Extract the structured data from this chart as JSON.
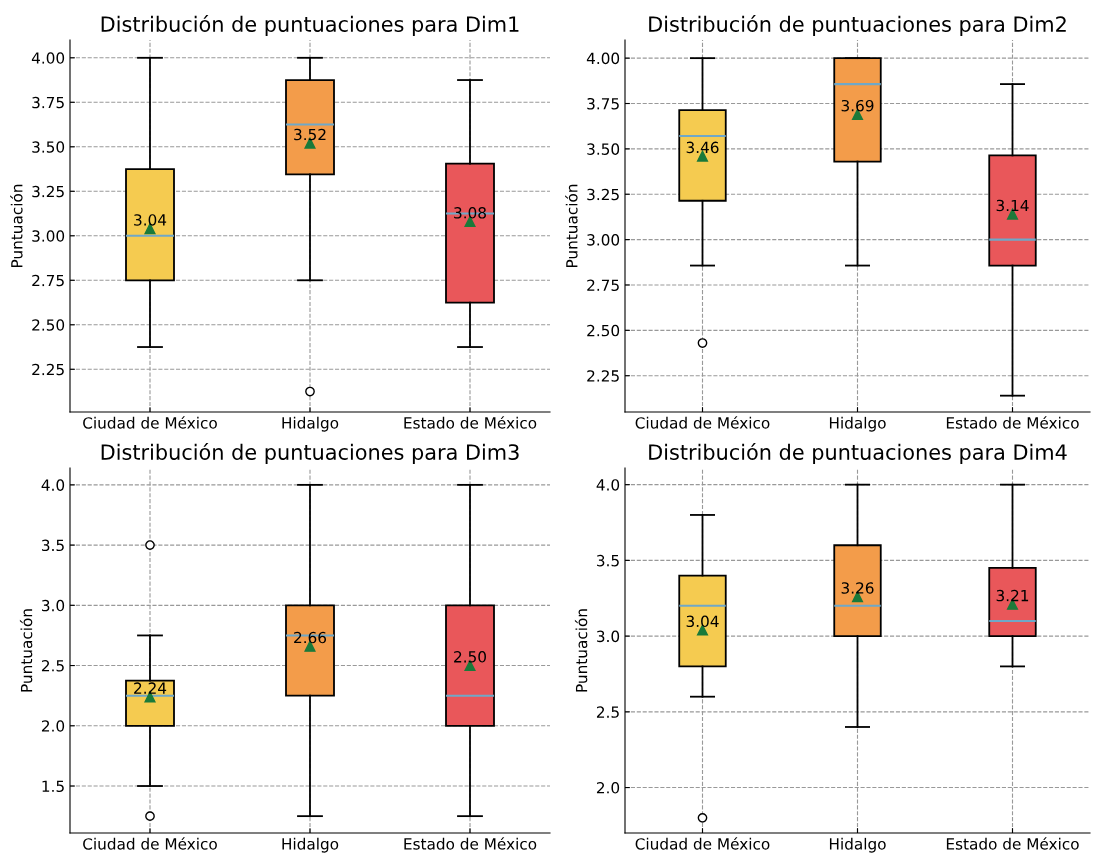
{
  "chart_data": [
    {
      "type": "box",
      "title": "Distribución de puntuaciones para Dim1",
      "ylabel": "Puntuación",
      "categories": [
        "Ciudad de México",
        "Hidalgo",
        "Estado de México"
      ],
      "colors": [
        "#f5cb50",
        "#f39c4a",
        "#e9575a"
      ],
      "boxes": [
        {
          "low": 2.375,
          "q1": 2.75,
          "median": 3.0,
          "q3": 3.375,
          "high": 4.0,
          "mean": 3.04
        },
        {
          "low": 2.75,
          "q1": 3.345,
          "median": 3.625,
          "q3": 3.875,
          "high": 4.0,
          "mean": 3.52,
          "outliers": [
            2.125
          ]
        },
        {
          "low": 2.375,
          "q1": 2.625,
          "median": 3.125,
          "q3": 3.405,
          "high": 3.875,
          "mean": 3.08
        }
      ],
      "value_labels": [
        "3.04",
        "3.52",
        "3.08"
      ],
      "ylim": [
        2.01,
        4.1
      ],
      "yticks": [
        {
          "value": 2.25,
          "label": "2.25"
        },
        {
          "value": 2.5,
          "label": "2.50"
        },
        {
          "value": 2.75,
          "label": "2.75"
        },
        {
          "value": 3.0,
          "label": "3.00"
        },
        {
          "value": 3.25,
          "label": "3.25"
        },
        {
          "value": 3.5,
          "label": "3.50"
        },
        {
          "value": 3.75,
          "label": "3.75"
        },
        {
          "value": 4.0,
          "label": "4.00"
        }
      ],
      "grid": true,
      "marker": "triangle"
    },
    {
      "type": "box",
      "title": "Distribución de puntuaciones para Dim2",
      "ylabel": "Puntuación",
      "categories": [
        "Ciudad de México",
        "Hidalgo",
        "Estado de México"
      ],
      "colors": [
        "#f5cb50",
        "#f39c4a",
        "#e9575a"
      ],
      "boxes": [
        {
          "low": 2.857,
          "q1": 3.214,
          "median": 3.571,
          "q3": 3.714,
          "high": 4.0,
          "mean": 3.46,
          "outliers": [
            2.43
          ]
        },
        {
          "low": 2.857,
          "q1": 3.43,
          "median": 3.857,
          "q3": 4.0,
          "high": 4.0,
          "mean": 3.69
        },
        {
          "low": 2.14,
          "q1": 2.857,
          "median": 3.0,
          "q3": 3.464,
          "high": 3.857,
          "mean": 3.14
        }
      ],
      "value_labels": [
        "3.46",
        "3.69",
        "3.14"
      ],
      "ylim": [
        2.05,
        4.1
      ],
      "yticks": [
        {
          "value": 2.25,
          "label": "2.25"
        },
        {
          "value": 2.5,
          "label": "2.50"
        },
        {
          "value": 2.75,
          "label": "2.75"
        },
        {
          "value": 3.0,
          "label": "3.00"
        },
        {
          "value": 3.25,
          "label": "3.25"
        },
        {
          "value": 3.5,
          "label": "3.50"
        },
        {
          "value": 3.75,
          "label": "3.75"
        },
        {
          "value": 4.0,
          "label": "4.00"
        }
      ],
      "grid": true,
      "marker": "triangle"
    },
    {
      "type": "box",
      "title": "Distribución de puntuaciones para Dim3",
      "ylabel": "Puntuación",
      "categories": [
        "Ciudad de México",
        "Hidalgo",
        "Estado de México"
      ],
      "colors": [
        "#f5cb50",
        "#f39c4a",
        "#e9575a"
      ],
      "boxes": [
        {
          "low": 1.5,
          "q1": 2.0,
          "median": 2.25,
          "q3": 2.375,
          "high": 2.75,
          "mean": 2.24,
          "outliers": [
            3.5,
            1.25
          ]
        },
        {
          "low": 1.25,
          "q1": 2.25,
          "median": 2.75,
          "q3": 3.0,
          "high": 4.0,
          "mean": 2.66
        },
        {
          "low": 1.25,
          "q1": 2.0,
          "median": 2.25,
          "q3": 3.0,
          "high": 4.0,
          "mean": 2.5
        }
      ],
      "value_labels": [
        "2.24",
        "2.66",
        "2.50"
      ],
      "ylim": [
        1.11,
        4.14
      ],
      "yticks": [
        1.5,
        {
          "value": 2,
          "label": "2.0"
        },
        2.5,
        {
          "value": 3,
          "label": "3.0"
        },
        3.5,
        {
          "value": 4,
          "label": "4.0"
        }
      ],
      "grid": true,
      "marker": "triangle"
    },
    {
      "type": "box",
      "title": "Distribución de puntuaciones para Dim4",
      "ylabel": "Puntuación",
      "categories": [
        "Ciudad de México",
        "Hidalgo",
        "Estado de México"
      ],
      "colors": [
        "#f5cb50",
        "#f39c4a",
        "#e9575a"
      ],
      "boxes": [
        {
          "low": 2.6,
          "q1": 2.8,
          "median": 3.2,
          "q3": 3.4,
          "high": 3.8,
          "mean": 3.04,
          "outliers": [
            1.8
          ]
        },
        {
          "low": 2.4,
          "q1": 3.0,
          "median": 3.2,
          "q3": 3.6,
          "high": 4.0,
          "mean": 3.26
        },
        {
          "low": 2.8,
          "q1": 3.0,
          "median": 3.1,
          "q3": 3.45,
          "high": 4.0,
          "mean": 3.21
        }
      ],
      "value_labels": [
        "3.04",
        "3.26",
        "3.21"
      ],
      "ylim": [
        1.7,
        4.11
      ],
      "yticks": [
        {
          "value": 2,
          "label": "2.0"
        },
        2.5,
        {
          "value": 3,
          "label": "3.0"
        },
        3.5,
        {
          "value": 4,
          "label": "4.0"
        }
      ],
      "grid": true,
      "marker": "triangle"
    }
  ]
}
